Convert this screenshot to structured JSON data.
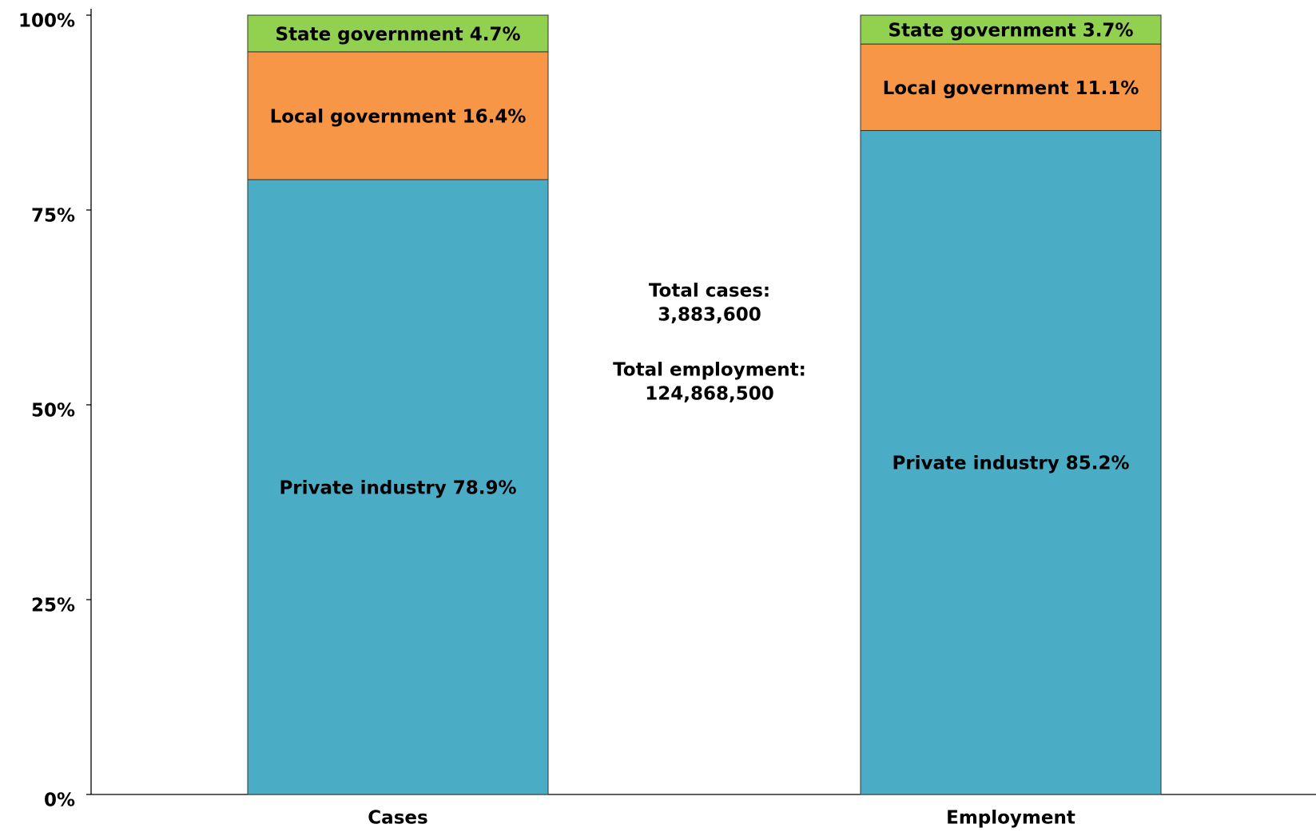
{
  "chart_data": {
    "type": "stacked_bar",
    "categories": [
      "Cases",
      "Employment"
    ],
    "series": [
      {
        "name": "Private industry",
        "color": "#4bacc6",
        "values": [
          78.9,
          85.2
        ],
        "value_labels": [
          "Private industry 78.9%",
          "Private industry 85.2%"
        ]
      },
      {
        "name": "Local government",
        "color": "#f79646",
        "values": [
          16.4,
          11.1
        ],
        "value_labels": [
          "Local government 16.4%",
          "Local government 11.1%"
        ]
      },
      {
        "name": "State government",
        "color": "#92d050",
        "values": [
          4.7,
          3.7
        ],
        "value_labels": [
          "State government 4.7%",
          "State government 3.7%"
        ]
      }
    ],
    "annotations": [
      "Total cases:",
      "3,883,600",
      "Total employment:",
      "124,868,500"
    ],
    "ylim": [
      0,
      100
    ],
    "yticks": [
      {
        "value": 0,
        "label": "0%"
      },
      {
        "value": 25,
        "label": "25%"
      },
      {
        "value": 50,
        "label": "50%"
      },
      {
        "value": 75,
        "label": "75%"
      },
      {
        "value": 100,
        "label": "100%"
      }
    ],
    "grid": false
  }
}
